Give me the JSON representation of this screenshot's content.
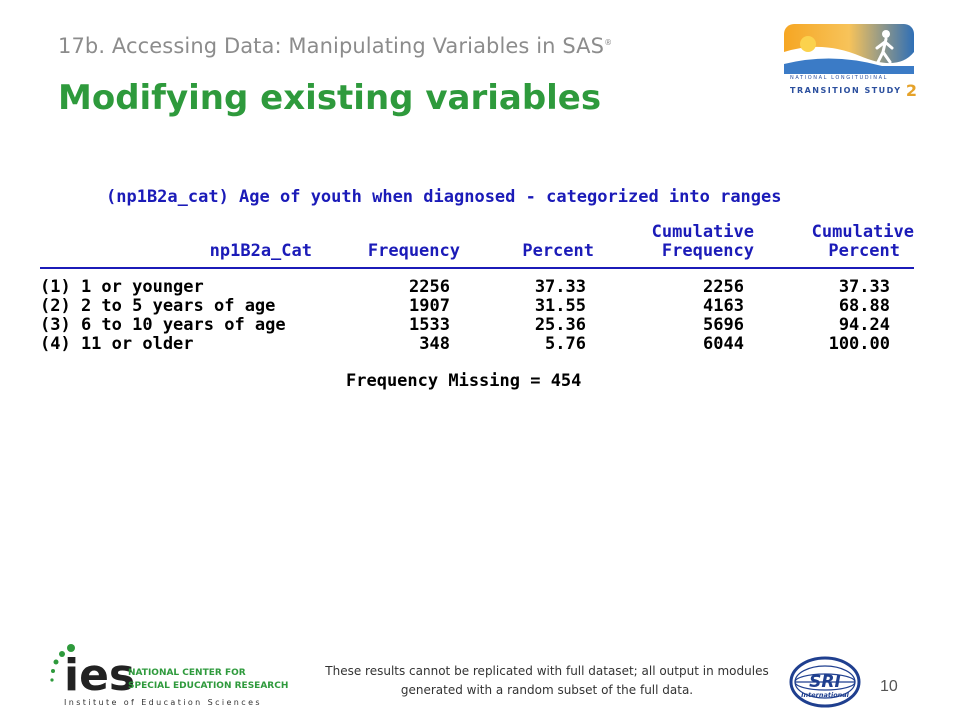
{
  "header": {
    "subtitle": "17b. Accessing Data: Manipulating Variables in SAS",
    "subtitle_mark": "®",
    "title": "Modifying existing variables"
  },
  "nlts_logo": {
    "line1": "NATIONAL LONGITUDINAL",
    "line2": "TRANSITION STUDY",
    "number": "2",
    "icon": "walking-figure-sunrise-icon"
  },
  "sas_output": {
    "title": "(np1B2a_cat) Age of youth when diagnosed - categorized into ranges",
    "columns": [
      {
        "line1": "",
        "line2": "np1B2a_Cat"
      },
      {
        "line1": "",
        "line2": "Frequency"
      },
      {
        "line1": "",
        "line2": "Percent"
      },
      {
        "line1": "Cumulative",
        "line2": "Frequency"
      },
      {
        "line1": "Cumulative",
        "line2": "Percent"
      }
    ],
    "rows": [
      [
        "(1) 1 or younger",
        "2256",
        "37.33",
        "2256",
        "37.33"
      ],
      [
        "(2) 2 to 5 years of age",
        "1907",
        "31.55",
        "4163",
        "68.88"
      ],
      [
        "(3) 6 to 10 years of age",
        "1533",
        "25.36",
        "5696",
        "94.24"
      ],
      [
        "(4) 11 or older",
        "348",
        "5.76",
        "6044",
        "100.00"
      ]
    ],
    "missing": "Frequency Missing = 454"
  },
  "footer": {
    "ies_mark": "ies",
    "ies_line1": "NATIONAL CENTER FOR",
    "ies_line2": "SPECIAL EDUCATION RESEARCH",
    "ies_line3": "Institute of Education Sciences",
    "note": "These results cannot be replicated with full dataset; all output in modules generated with a random subset of the full data.",
    "sri_text": "SRI",
    "sri_sub": "International",
    "page_number": "10"
  },
  "colors": {
    "title_green": "#2e9a3c",
    "sas_blue": "#1b1bb8",
    "subtitle_gray": "#8c8c8c"
  }
}
